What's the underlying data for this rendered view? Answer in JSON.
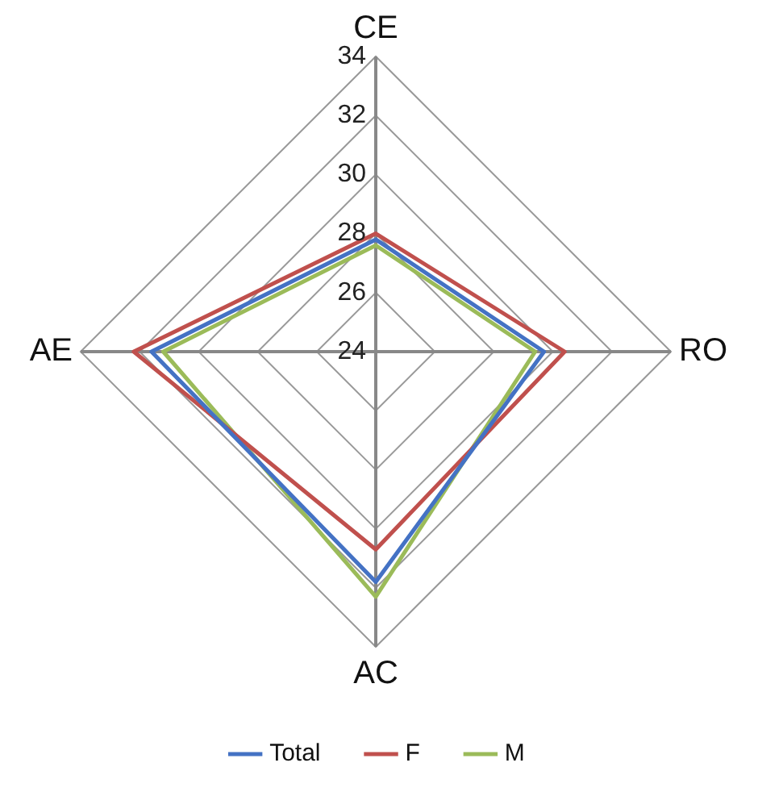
{
  "chart_data": {
    "type": "radar",
    "categories": [
      "CE",
      "RO",
      "AC",
      "AE"
    ],
    "series": [
      {
        "name": "Total",
        "color": "#4472c4",
        "values": [
          27.8,
          29.7,
          31.8,
          31.6
        ]
      },
      {
        "name": "F",
        "color": "#c0504d",
        "values": [
          28.0,
          30.4,
          30.7,
          32.2
        ]
      },
      {
        "name": "M",
        "color": "#9bbb59",
        "values": [
          27.6,
          29.4,
          32.3,
          31.2
        ]
      }
    ],
    "ylim": [
      24,
      34
    ],
    "yticks": [
      24,
      26,
      28,
      30,
      32,
      34
    ],
    "legend": "bottom",
    "marker": "none",
    "grid": true
  }
}
